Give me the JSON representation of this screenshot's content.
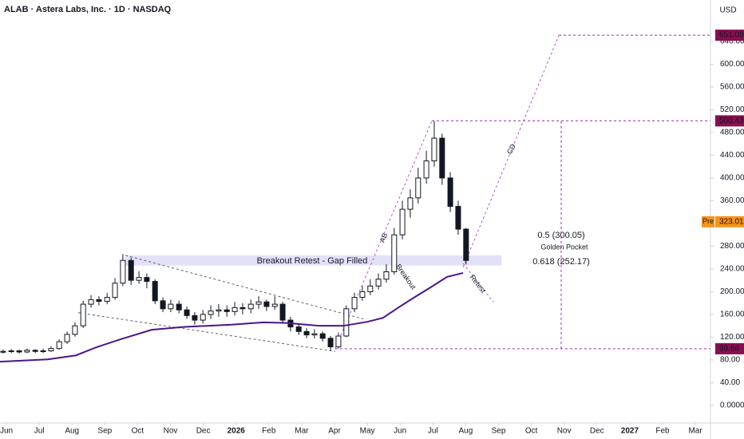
{
  "chart_data": {
    "type": "candlestick",
    "title": "ALAB · Astera Labs, Inc. · 1D · NASDAQ",
    "currency": "USD",
    "xlim": [
      -0.195,
      21.46
    ],
    "ylim": [
      -31,
      713
    ],
    "xticks": [
      {
        "value": 0,
        "label": "Jun"
      },
      {
        "value": 1,
        "label": "Jul"
      },
      {
        "value": 2,
        "label": "Aug"
      },
      {
        "value": 3,
        "label": "Sep"
      },
      {
        "value": 4,
        "label": "Oct"
      },
      {
        "value": 5,
        "label": "Nov"
      },
      {
        "value": 6,
        "label": "Dec"
      },
      {
        "value": 7,
        "label": "2026"
      },
      {
        "value": 8,
        "label": "Feb"
      },
      {
        "value": 9,
        "label": "Mar"
      },
      {
        "value": 10,
        "label": "Apr"
      },
      {
        "value": 11,
        "label": "May"
      },
      {
        "value": 12,
        "label": "Jun"
      },
      {
        "value": 13,
        "label": "Jul"
      },
      {
        "value": 14,
        "label": "Aug"
      },
      {
        "value": 15,
        "label": "Sep"
      },
      {
        "value": 16,
        "label": "Oct"
      },
      {
        "value": 17,
        "label": "Nov"
      },
      {
        "value": 18,
        "label": "Dec"
      },
      {
        "value": 19,
        "label": "2027"
      },
      {
        "value": 20,
        "label": "Feb"
      },
      {
        "value": 21,
        "label": "Mar"
      }
    ],
    "yticks": [
      {
        "value": 0,
        "label": "0.0000"
      },
      {
        "value": 40,
        "label": "40.00"
      },
      {
        "value": 80,
        "label": "80.00"
      },
      {
        "value": 120,
        "label": "120.00"
      },
      {
        "value": 160,
        "label": "160.00"
      },
      {
        "value": 200,
        "label": "200.00"
      },
      {
        "value": 240,
        "label": "240.00"
      },
      {
        "value": 280,
        "label": "280.00"
      },
      {
        "value": 320,
        "label": "320.00"
      },
      {
        "value": 360,
        "label": "360.00"
      },
      {
        "value": 400,
        "label": "400.00"
      },
      {
        "value": 440,
        "label": "440.00"
      },
      {
        "value": 480,
        "label": "480.00"
      },
      {
        "value": 520,
        "label": "520.00"
      },
      {
        "value": 560,
        "label": "560.00"
      },
      {
        "value": 600,
        "label": "600.00"
      },
      {
        "value": 640,
        "label": "640.00"
      }
    ],
    "up_color": "#ffffff",
    "down_color": "#131722",
    "border_color": "#131722",
    "x": [
      -0.1,
      0.15,
      0.39,
      0.63,
      0.88,
      1.12,
      1.36,
      1.61,
      1.85,
      2.09,
      2.34,
      2.58,
      2.82,
      3.07,
      3.31,
      3.55,
      3.8,
      4.04,
      4.28,
      4.53,
      4.77,
      5.01,
      5.26,
      5.5,
      5.74,
      5.99,
      6.23,
      6.47,
      6.72,
      6.96,
      7.2,
      7.45,
      7.69,
      7.93,
      8.18,
      8.42,
      8.66,
      8.91,
      9.15,
      9.39,
      9.64,
      9.88,
      10.12,
      10.36,
      10.61,
      10.85,
      11.09,
      11.34,
      11.58,
      11.82,
      12.07,
      12.31,
      12.55,
      12.8,
      13.04,
      13.28,
      13.53,
      13.77,
      14.01
    ],
    "open": [
      94,
      95,
      96,
      94,
      97,
      95,
      96,
      100,
      112,
      125,
      140,
      178,
      186,
      183,
      190,
      215,
      255,
      220,
      225,
      218,
      184,
      170,
      178,
      168,
      158,
      150,
      160,
      166,
      168,
      165,
      172,
      170,
      178,
      182,
      174,
      178,
      150,
      138,
      130,
      124,
      126,
      118,
      103,
      122,
      170,
      190,
      200,
      210,
      222,
      235,
      300,
      345,
      365,
      400,
      430,
      470,
      400,
      350,
      310
    ],
    "high": [
      98,
      99,
      98,
      100,
      99,
      100,
      104,
      116,
      130,
      146,
      184,
      194,
      192,
      198,
      224,
      266,
      260,
      236,
      232,
      222,
      190,
      186,
      184,
      174,
      164,
      168,
      176,
      178,
      176,
      182,
      180,
      186,
      192,
      186,
      192,
      182,
      156,
      142,
      136,
      134,
      130,
      122,
      128,
      176,
      198,
      210,
      222,
      232,
      248,
      312,
      360,
      380,
      418,
      448,
      500,
      478,
      410,
      360,
      312
    ],
    "low": [
      91,
      92,
      91,
      92,
      92,
      92,
      94,
      98,
      108,
      121,
      136,
      172,
      176,
      178,
      186,
      210,
      212,
      214,
      206,
      178,
      164,
      164,
      162,
      152,
      142,
      144,
      152,
      156,
      156,
      158,
      160,
      162,
      170,
      166,
      168,
      144,
      130,
      124,
      118,
      118,
      112,
      96,
      100,
      120,
      164,
      184,
      194,
      204,
      216,
      230,
      292,
      330,
      355,
      390,
      420,
      388,
      340,
      300,
      248
    ],
    "close": [
      95,
      96,
      94,
      97,
      95,
      96,
      100,
      112,
      125,
      140,
      178,
      186,
      183,
      190,
      215,
      255,
      220,
      225,
      218,
      184,
      170,
      178,
      168,
      158,
      150,
      160,
      166,
      168,
      165,
      172,
      170,
      178,
      182,
      174,
      178,
      150,
      138,
      130,
      124,
      126,
      118,
      103,
      122,
      170,
      190,
      200,
      210,
      222,
      235,
      300,
      345,
      365,
      400,
      430,
      470,
      400,
      350,
      310,
      255
    ],
    "moving_average": {
      "color": "#4a148c",
      "x": [
        -0.195,
        1.26,
        2.12,
        2.73,
        3.46,
        4.43,
        5.4,
        6.86,
        7.83,
        8.56,
        9.54,
        10.27,
        11.0,
        11.48,
        11.97,
        12.46,
        12.94,
        13.43,
        13.92
      ],
      "values": [
        77,
        81,
        88,
        102,
        116,
        133,
        138,
        142,
        146,
        145,
        140,
        140,
        147,
        154,
        173,
        191,
        208,
        226,
        233
      ]
    },
    "zones": [
      {
        "x": [
          3.63,
          15.09
        ],
        "y": [
          246,
          264
        ],
        "color": "#e3e1f7"
      }
    ],
    "drawings": [
      {
        "x": [
          3.63,
          10.88
        ],
        "y": [
          264,
          152
        ],
        "color": "#5d606b"
      },
      {
        "x": [
          2.19,
          10.02
        ],
        "y": [
          163,
          95
        ],
        "color": "#5d606b"
      },
      {
        "x": [
          10.02,
          12.97
        ],
        "y": [
          100,
          500.43
        ],
        "color": "#b35ad6"
      },
      {
        "x": [
          13.92,
          16.84
        ],
        "y": [
          243,
          651.09
        ],
        "color": "#b35ad6"
      },
      {
        "x": [
          13.92,
          14.84
        ],
        "y": [
          250,
          182
        ],
        "color": "#b35ad6"
      },
      {
        "x": [
          16.91,
          16.91
        ],
        "y": [
          99.66,
          500.43
        ],
        "color": "#9c27b0"
      }
    ],
    "price_labels": [
      {
        "value": 651.09,
        "color": "#880e4f",
        "line_from": 16.84
      },
      {
        "value": 500.43,
        "color": "#880e4f",
        "line_from": 12.97
      },
      {
        "value": 323.01,
        "color": "#f7931a",
        "prefix": "Pre"
      },
      {
        "value": 99.66,
        "color": "#880e4f",
        "line_from": 10.02
      }
    ],
    "annotations": [
      {
        "text": "Breakout Retest - Gap Filled",
        "color": "#2962ff"
      },
      {
        "text": "0.5 (300.05)",
        "color": "#4a148c"
      },
      {
        "text": "Golden Pocket",
        "color": "#4a148c"
      },
      {
        "text": "0.618 (252.17)",
        "color": "#4a148c"
      },
      {
        "text": "AB",
        "color": "#9c27b0"
      },
      {
        "text": "CD",
        "color": "#9c27b0"
      },
      {
        "text": "Breakout",
        "color": "#9c27b0"
      },
      {
        "text": "Retest",
        "color": "#9c27b0"
      }
    ]
  }
}
